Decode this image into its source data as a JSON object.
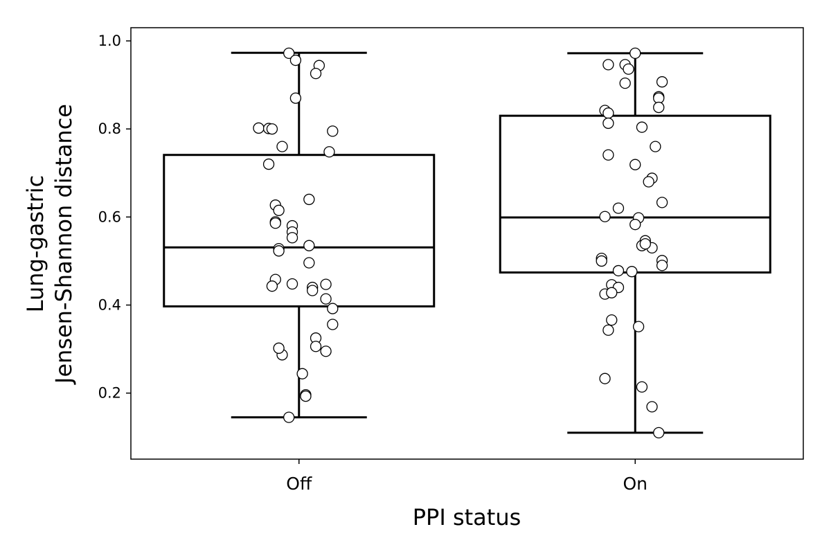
{
  "chart_data": {
    "type": "box",
    "xlabel": "PPI status",
    "ylabel_lines": [
      "Lung-gastric",
      "Jensen-Shannon distance"
    ],
    "ylim": [
      0.05,
      1.03
    ],
    "yticks": [
      0.2,
      0.4,
      0.6,
      0.8,
      1.0
    ],
    "ytick_labels": [
      "0.2",
      "0.4",
      "0.6",
      "0.8",
      "1.0"
    ],
    "categories": [
      "Off",
      "On"
    ],
    "grid": false,
    "boxes": [
      {
        "name": "Off",
        "whisker_low": 0.145,
        "q1": 0.397,
        "median": 0.531,
        "q3": 0.741,
        "whisker_high": 0.973
      },
      {
        "name": "On",
        "whisker_low": 0.11,
        "q1": 0.474,
        "median": 0.599,
        "q3": 0.83,
        "whisker_high": 0.972
      }
    ],
    "points": [
      {
        "category": "Off",
        "jitter": [
          -0.03,
          -0.01,
          0.06,
          0.05,
          -0.01,
          -0.12,
          -0.09,
          -0.08,
          0.1,
          -0.05,
          0.09,
          -0.09,
          0.03,
          -0.07,
          -0.06,
          -0.02,
          -0.07,
          -0.07,
          -0.02,
          -0.02,
          0.03,
          -0.06,
          -0.06,
          0.03,
          -0.07,
          -0.08,
          -0.02,
          0.04,
          0.08,
          0.04,
          0.08,
          0.1,
          0.1,
          0.05,
          -0.05,
          0.05,
          0.08,
          -0.06,
          0.01,
          0.02,
          0.02,
          -0.03
        ],
        "values": [
          0.972,
          0.956,
          0.944,
          0.926,
          0.87,
          0.802,
          0.801,
          0.8,
          0.795,
          0.76,
          0.748,
          0.72,
          0.64,
          0.627,
          0.615,
          0.58,
          0.589,
          0.586,
          0.566,
          0.553,
          0.535,
          0.528,
          0.523,
          0.496,
          0.458,
          0.443,
          0.448,
          0.44,
          0.447,
          0.433,
          0.414,
          0.392,
          0.356,
          0.325,
          0.287,
          0.306,
          0.295,
          0.302,
          0.244,
          0.196,
          0.193,
          0.145
        ]
      },
      {
        "category": "On",
        "jitter": [
          0.0,
          -0.08,
          -0.03,
          -0.02,
          -0.03,
          0.08,
          0.07,
          0.07,
          0.07,
          -0.09,
          -0.08,
          -0.08,
          0.02,
          -0.08,
          0.06,
          0.0,
          0.05,
          0.04,
          0.08,
          -0.05,
          0.01,
          -0.09,
          0.0,
          0.03,
          0.02,
          0.05,
          0.03,
          -0.1,
          -0.1,
          -0.05,
          -0.01,
          0.08,
          0.08,
          -0.07,
          -0.05,
          -0.09,
          -0.07,
          -0.07,
          -0.08,
          0.01,
          -0.09,
          0.02,
          0.05,
          0.07
        ],
        "values": [
          0.972,
          0.946,
          0.946,
          0.936,
          0.904,
          0.907,
          0.873,
          0.87,
          0.849,
          0.842,
          0.836,
          0.813,
          0.804,
          0.741,
          0.76,
          0.719,
          0.688,
          0.68,
          0.633,
          0.62,
          0.598,
          0.601,
          0.583,
          0.546,
          0.535,
          0.53,
          0.539,
          0.506,
          0.5,
          0.478,
          0.476,
          0.501,
          0.49,
          0.446,
          0.44,
          0.425,
          0.428,
          0.366,
          0.343,
          0.351,
          0.233,
          0.214,
          0.169,
          0.11
        ]
      }
    ]
  }
}
